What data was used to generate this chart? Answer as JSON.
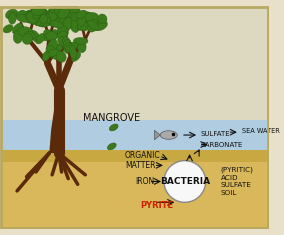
{
  "bg_color": "#e8e0c8",
  "border_color": "#b8a860",
  "sky_color": "#ddd8c0",
  "water_color": "#b0cce0",
  "soil_color": "#d8b85a",
  "soil_surface_color": "#c8a840",
  "tree_trunk_color": "#5a2a0a",
  "leaf_color": "#3a7a1a",
  "leaf_edge_color": "#2a5a10",
  "bacteria_fill": "#f8f8f8",
  "bacteria_edge": "#888888",
  "fish_color": "#aaaaaa",
  "fish_edge": "#555555",
  "arrow_color": "#111111",
  "text_color": "#111111",
  "pyrite_color": "#cc2200",
  "labels": {
    "mangrove": "MANGROVE",
    "organic_matter": "ORGANIC\nMATTER",
    "bacteria": "BACTERIA",
    "iron": "IRON",
    "pyrite": "PYRITE",
    "sulfate": "SULFATE",
    "sea_water": "SEA WATER",
    "carbonate": "CARBONATE",
    "pyritic": "(PYRITIC)\nACID\nSULFATE\nSOIL"
  },
  "figsize": [
    2.84,
    2.35
  ],
  "dpi": 100
}
